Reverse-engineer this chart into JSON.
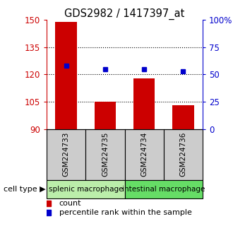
{
  "title": "GDS2982 / 1417397_at",
  "samples": [
    "GSM224733",
    "GSM224735",
    "GSM224734",
    "GSM224736"
  ],
  "counts": [
    149,
    105,
    118,
    103
  ],
  "percentiles": [
    58,
    55,
    55,
    53
  ],
  "ylim_left": [
    90,
    150
  ],
  "ylim_right": [
    0,
    100
  ],
  "yticks_left": [
    90,
    105,
    120,
    135,
    150
  ],
  "yticks_right": [
    0,
    25,
    50,
    75,
    100
  ],
  "ytick_labels_right": [
    "0",
    "25",
    "50",
    "75",
    "100%"
  ],
  "bar_color": "#cc0000",
  "dot_color": "#0000cc",
  "bar_width": 0.55,
  "groups": [
    {
      "label": "splenic macrophage",
      "samples": [
        0,
        1
      ],
      "color": "#bbeeaa"
    },
    {
      "label": "intestinal macrophage",
      "samples": [
        2,
        3
      ],
      "color": "#66dd66"
    }
  ],
  "cell_type_label": "cell type",
  "legend_count_label": "count",
  "legend_pct_label": "percentile rank within the sample",
  "grid_yticks": [
    105,
    120,
    135
  ],
  "left_axis_color": "#cc0000",
  "right_axis_color": "#0000cc",
  "sample_box_color": "#cccccc",
  "sample_box_edge": "#000000"
}
